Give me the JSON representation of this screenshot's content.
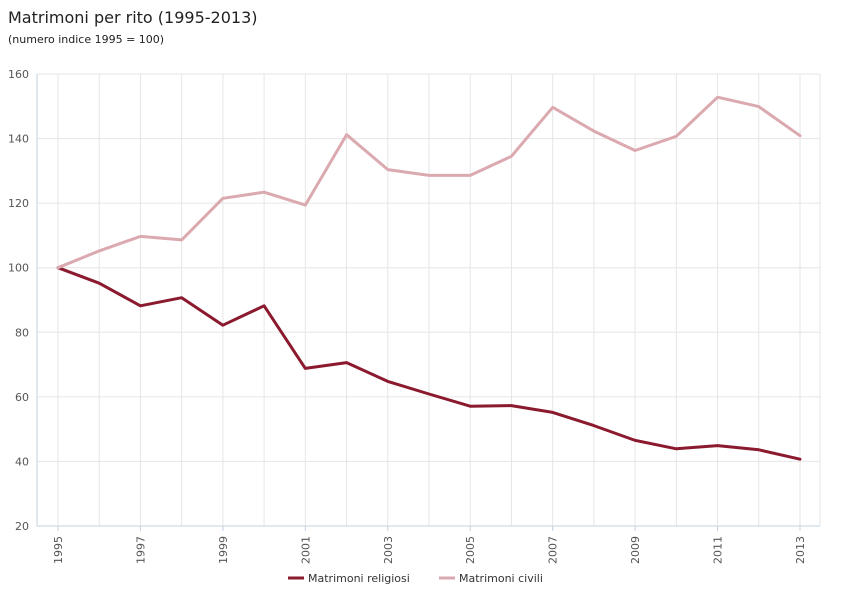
{
  "header": {
    "title": "Matrimoni per rito (1995-2013)",
    "subtitle": "(numero indice 1995 = 100)"
  },
  "colors": {
    "religiosi": "#8b1a2e",
    "civili": "#dba9b0",
    "grid": "#e6e6e6",
    "axis": "#c0d0e0"
  },
  "chart_data": {
    "type": "line",
    "title": "Matrimoni per rito (1995-2013)",
    "subtitle": "(numero indice 1995 = 100)",
    "xlabel": "",
    "ylabel": "",
    "ylim": [
      20,
      160
    ],
    "xlim": [
      1995,
      2013
    ],
    "y_ticks": [
      "20",
      "40",
      "60",
      "80",
      "100",
      "120",
      "140",
      "160"
    ],
    "x_ticks": [
      "1995",
      "1997",
      "1999",
      "2001",
      "2003",
      "2005",
      "2007",
      "2009",
      "2011",
      "2013"
    ],
    "grid": true,
    "legend_position": "bottom",
    "x": [
      1995,
      1996,
      1997,
      1998,
      1999,
      2000,
      2001,
      2002,
      2003,
      2004,
      2005,
      2006,
      2007,
      2008,
      2009,
      2010,
      2011,
      2012,
      2013
    ],
    "series": [
      {
        "name": "Matrimoni religiosi",
        "color": "#8b1a2e",
        "values": [
          100,
          95.2,
          88.2,
          90.7,
          82.2,
          88.2,
          68.8,
          70.6,
          64.8,
          60.9,
          57.1,
          57.3,
          55.2,
          51.1,
          46.5,
          43.9,
          44.9,
          43.6,
          40.7
        ]
      },
      {
        "name": "Matrimoni civili",
        "color": "#dba9b0",
        "values": [
          100,
          105.2,
          109.7,
          108.6,
          121.5,
          123.4,
          119.4,
          141.2,
          130.4,
          128.6,
          128.6,
          134.5,
          149.7,
          142.3,
          136.3,
          140.7,
          152.8,
          149.9,
          140.9
        ]
      }
    ]
  }
}
